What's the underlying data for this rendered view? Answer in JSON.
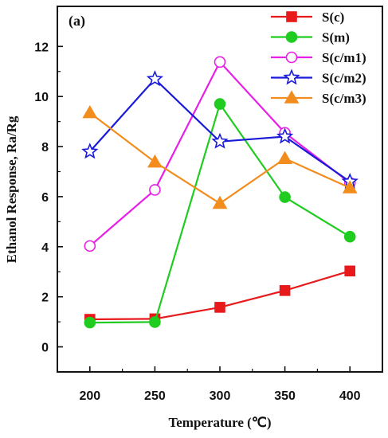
{
  "chart_data": {
    "type": "line",
    "panel_label": "(a)",
    "xlabel": "Temperature (℃)",
    "ylabel": "Ethanol Response, Ra/Rg",
    "x": [
      200,
      250,
      300,
      350,
      400
    ],
    "xticks": [
      "200",
      "250",
      "300",
      "350",
      "400"
    ],
    "xlim": [
      175,
      425
    ],
    "ylim": [
      -1,
      13.6
    ],
    "yticks": [
      "0",
      "2",
      "4",
      "6",
      "8",
      "10",
      "12"
    ],
    "series": [
      {
        "name": "S(c)",
        "values": [
          1.1,
          1.12,
          1.58,
          2.25,
          3.03
        ],
        "color": "#e8191b",
        "marker": "square",
        "filled": true
      },
      {
        "name": "S(m)",
        "values": [
          0.97,
          0.99,
          9.7,
          5.98,
          4.4
        ],
        "color": "#1fcc1f",
        "marker": "circle",
        "filled": true
      },
      {
        "name": "S(c/m1)",
        "values": [
          4.03,
          6.27,
          11.38,
          8.55,
          6.55
        ],
        "color": "#e620e6",
        "marker": "circle",
        "filled": false
      },
      {
        "name": "S(c/m2)",
        "values": [
          7.8,
          10.7,
          8.2,
          8.4,
          6.6
        ],
        "color": "#1a1ad9",
        "marker": "star",
        "filled": false
      },
      {
        "name": "S(c/m3)",
        "values": [
          9.35,
          7.38,
          5.73,
          7.52,
          6.35
        ],
        "color": "#f28c1c",
        "marker": "triangle",
        "filled": true
      }
    ],
    "legend_position": "top-right",
    "grid": false
  }
}
